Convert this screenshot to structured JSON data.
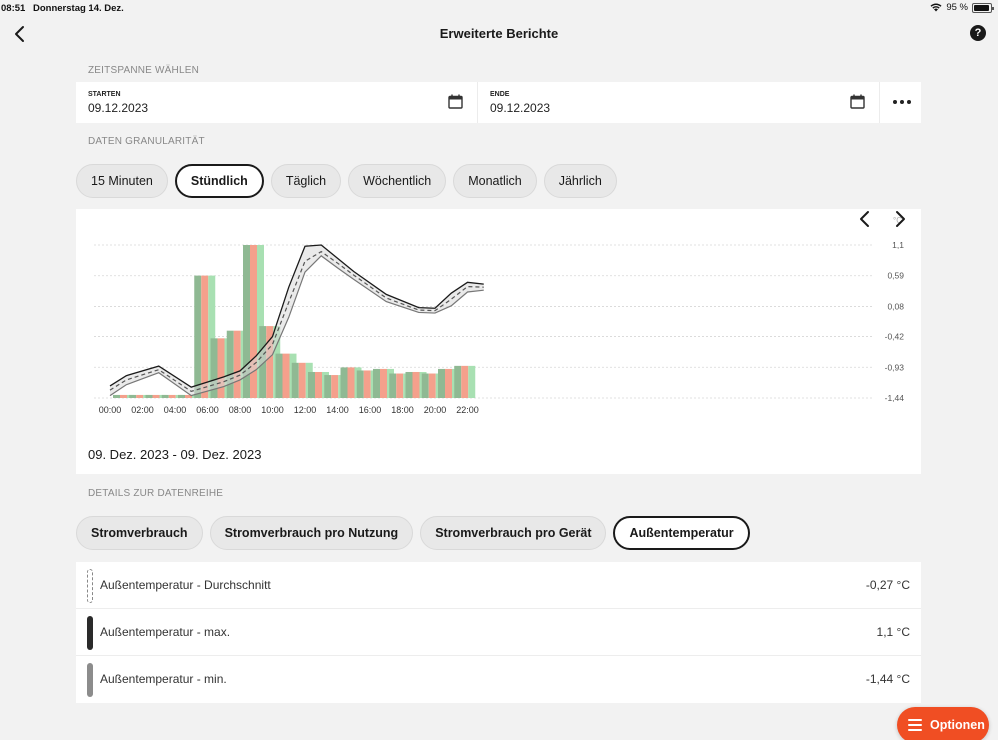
{
  "status_bar": {
    "time": "08:51",
    "date": "Donnerstag 14. Dez.",
    "battery": "95 %",
    "battery_level": 0.95
  },
  "nav": {
    "title": "Erweiterte Berichte"
  },
  "period": {
    "section_label": "ZEITSPANNE WÄHLEN",
    "start_label": "STARTEN",
    "start_value": "09.12.2023",
    "end_label": "ENDE",
    "end_value": "09.12.2023"
  },
  "granularity": {
    "section_label": "DATEN GRANULARITÄT",
    "options": [
      "15 Minuten",
      "Stündlich",
      "Täglich",
      "Wöchentlich",
      "Monatlich",
      "Jährlich"
    ],
    "selected": "Stündlich"
  },
  "chart": {
    "range_text": "09. Dez. 2023 - 09. Dez. 2023"
  },
  "chart_data": {
    "type": "bar",
    "unit": "°C",
    "x_ticks": [
      "00:00",
      "02:00",
      "04:00",
      "06:00",
      "08:00",
      "10:00",
      "12:00",
      "14:00",
      "16:00",
      "18:00",
      "20:00",
      "22:00"
    ],
    "y_ticks": [
      "1,1",
      "0,59",
      "0,08",
      "-0,42",
      "-0,93",
      "-1,44"
    ],
    "y_values": [
      1.1,
      0.59,
      0.08,
      -0.42,
      -0.93,
      -1.44
    ],
    "ylim": [
      -1.44,
      1.1
    ],
    "grid": true,
    "bar_groups": [
      {
        "hour": 0,
        "values": [
          0.02,
          0.02,
          0.02
        ]
      },
      {
        "hour": 1,
        "values": [
          0.02,
          0.02,
          0.02
        ]
      },
      {
        "hour": 2,
        "values": [
          0.02,
          0.02,
          0.02
        ]
      },
      {
        "hour": 3,
        "values": [
          0.02,
          0.02,
          0.02
        ]
      },
      {
        "hour": 4,
        "values": [
          0.02,
          0.02,
          0.02
        ]
      },
      {
        "hour": 5,
        "values": [
          0.8,
          0.8,
          0.8
        ]
      },
      {
        "hour": 6,
        "values": [
          0.39,
          0.39,
          0.39
        ]
      },
      {
        "hour": 7,
        "values": [
          0.44,
          0.44,
          0.44
        ]
      },
      {
        "hour": 8,
        "values": [
          1.0,
          1.0,
          1.0
        ]
      },
      {
        "hour": 9,
        "values": [
          0.47,
          0.47,
          0.47
        ]
      },
      {
        "hour": 10,
        "values": [
          0.29,
          0.29,
          0.29
        ]
      },
      {
        "hour": 11,
        "values": [
          0.23,
          0.23,
          0.23
        ]
      },
      {
        "hour": 12,
        "values": [
          0.17,
          0.17,
          0.17
        ]
      },
      {
        "hour": 13,
        "values": [
          0.15,
          0.15,
          0.15
        ]
      },
      {
        "hour": 14,
        "values": [
          0.2,
          0.2,
          0.2
        ]
      },
      {
        "hour": 15,
        "values": [
          0.18,
          0.18,
          0.18
        ]
      },
      {
        "hour": 16,
        "values": [
          0.19,
          0.19,
          0.19
        ]
      },
      {
        "hour": 17,
        "values": [
          0.16,
          0.16,
          0.16
        ]
      },
      {
        "hour": 18,
        "values": [
          0.17,
          0.17,
          0.17
        ]
      },
      {
        "hour": 19,
        "values": [
          0.16,
          0.16,
          0.16
        ]
      },
      {
        "hour": 20,
        "values": [
          0.19,
          0.19,
          0.19
        ]
      },
      {
        "hour": 21,
        "values": [
          0.21,
          0.21,
          0.21
        ]
      }
    ],
    "bar_colors": [
      "#8fb993",
      "#f4a08c",
      "#a8e0b2"
    ],
    "bar_tint": "#e1f3e5",
    "series": [
      {
        "name": "Außentemperatur - max.",
        "color": "#1a1a1a",
        "x": [
          0,
          1,
          3,
          5,
          7,
          8,
          9,
          10,
          11,
          12,
          13,
          14,
          15,
          17,
          19,
          20,
          21,
          22,
          23
        ],
        "y": [
          -1.24,
          -1.07,
          -0.91,
          -1.26,
          -1.09,
          -0.99,
          -0.74,
          -0.42,
          0.4,
          1.08,
          1.1,
          0.88,
          0.66,
          0.28,
          0.06,
          0.05,
          0.3,
          0.48,
          0.45
        ]
      },
      {
        "name": "Außentemperatur - Durchschnitt",
        "color": "#555555",
        "x": [
          0,
          1,
          3,
          5,
          7,
          8,
          9,
          10,
          11,
          12,
          13,
          14,
          15,
          17,
          19,
          20,
          21,
          22,
          23
        ],
        "y": [
          -1.31,
          -1.14,
          -0.97,
          -1.33,
          -1.17,
          -1.06,
          -0.85,
          -0.55,
          0.15,
          0.83,
          0.99,
          0.8,
          0.6,
          0.22,
          0.02,
          0.01,
          0.2,
          0.41,
          0.4
        ]
      },
      {
        "name": "Außentemperatur - min.",
        "color": "#777777",
        "x": [
          0,
          1,
          3,
          5,
          7,
          8,
          9,
          10,
          11,
          12,
          13,
          14,
          15,
          17,
          19,
          20,
          21,
          22,
          23
        ],
        "y": [
          -1.4,
          -1.22,
          -1.02,
          -1.4,
          -1.25,
          -1.14,
          -0.97,
          -0.72,
          -0.1,
          0.65,
          0.92,
          0.72,
          0.53,
          0.16,
          -0.02,
          -0.03,
          0.09,
          0.32,
          0.35
        ]
      }
    ]
  },
  "details": {
    "section_label": "DETAILS ZUR DATENREIHE",
    "tabs": [
      "Stromverbrauch",
      "Stromverbrauch pro Nutzung",
      "Stromverbrauch pro Gerät",
      "Außentemperatur"
    ],
    "selected": "Außentemperatur"
  },
  "legend": [
    {
      "name": "Außentemperatur - Durchschnitt",
      "value": "-0,27 °C",
      "style": "dashed",
      "color": "#888888"
    },
    {
      "name": "Außentemperatur - max.",
      "value": "1,1 °C",
      "style": "solid",
      "color": "#2a2a2a"
    },
    {
      "name": "Außentemperatur - min.",
      "value": "-1,44 °C",
      "style": "solid",
      "color": "#8c8c8c"
    }
  ],
  "fab": {
    "label": "Optionen",
    "color": "#f04e23"
  }
}
